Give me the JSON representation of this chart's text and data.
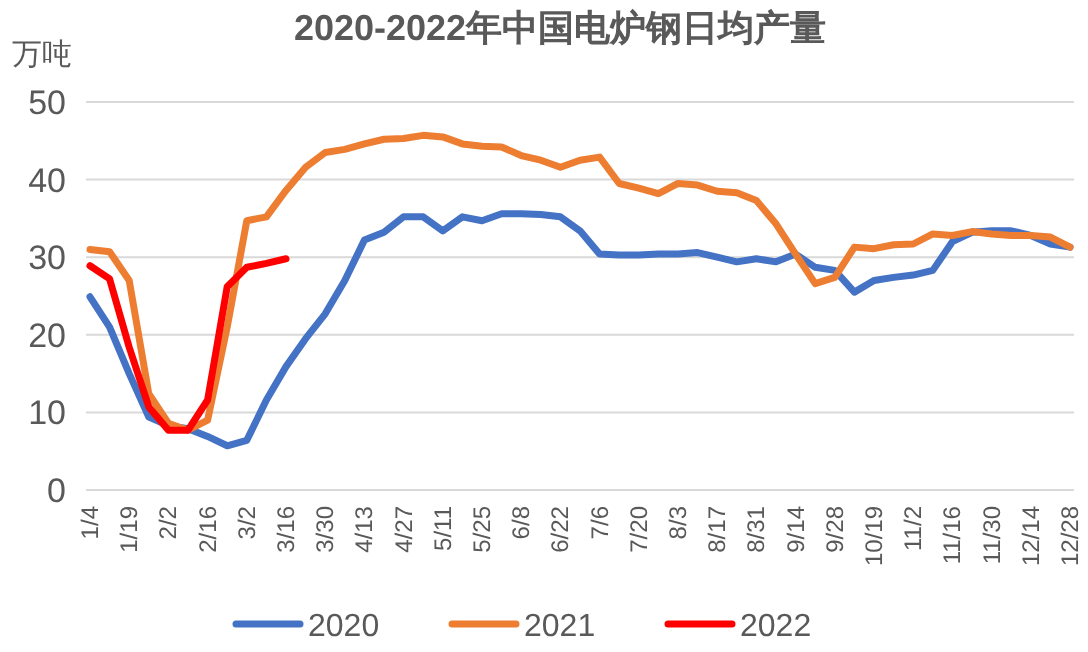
{
  "chart_data": {
    "type": "line",
    "title": "2020-2022年中国电炉钢日均产量",
    "ylabel": "万吨",
    "categories": [
      "1/4",
      null,
      "1/19",
      null,
      "2/2",
      null,
      "2/16",
      null,
      "3/2",
      null,
      "3/16",
      null,
      "3/30",
      null,
      "4/13",
      null,
      "4/27",
      null,
      "5/11",
      null,
      "5/25",
      null,
      "6/8",
      null,
      "6/22",
      null,
      "7/6",
      null,
      "7/20",
      null,
      "8/3",
      null,
      "8/17",
      null,
      "8/31",
      null,
      "9/14",
      null,
      "9/28",
      null,
      "10/19",
      null,
      "11/2",
      null,
      "11/16",
      null,
      "11/30",
      null,
      "12/14",
      null,
      "12/28"
    ],
    "series": [
      {
        "name": "2020",
        "color": "#4472c4",
        "values": [
          24.9,
          21,
          15,
          9.4,
          8.3,
          7.9,
          6.9,
          5.7,
          6.4,
          11.6,
          15.9,
          19.5,
          22.7,
          27,
          32.2,
          33.2,
          35.2,
          35.2,
          33.4,
          35.2,
          34.7,
          35.6,
          35.6,
          35.5,
          35.2,
          33.4,
          30.4,
          30.3,
          30.3,
          30.4,
          30.4,
          30.6,
          30,
          29.4,
          29.8,
          29.4,
          30.4,
          28.7,
          28.3,
          25.5,
          27,
          27.4,
          27.7,
          28.3,
          32,
          33.2,
          33.4,
          33.4,
          32.8,
          31.7,
          31.3
        ]
      },
      {
        "name": "2021",
        "color": "#ed7d31",
        "values": [
          31,
          30.7,
          27,
          12.4,
          8.6,
          7.7,
          9,
          21,
          34.7,
          35.2,
          38.6,
          41.6,
          43.5,
          43.9,
          44.6,
          45.2,
          45.3,
          45.7,
          45.5,
          44.6,
          44.3,
          44.2,
          43.1,
          42.5,
          41.6,
          42.5,
          42.9,
          39.5,
          38.9,
          38.2,
          39.5,
          39.3,
          38.5,
          38.3,
          37.3,
          34.3,
          30.4,
          26.6,
          27.4,
          31.3,
          31.1,
          31.6,
          31.7,
          33,
          32.8,
          33.3,
          33,
          32.8,
          32.8,
          32.6,
          31.3
        ]
      },
      {
        "name": "2022",
        "color": "#ff0000",
        "values": [
          28.9,
          27.2,
          18.4,
          10.7,
          7.7,
          7.7,
          11.6,
          26.2,
          28.7,
          29.2,
          29.8,
          null,
          null,
          null,
          null,
          null,
          null,
          null,
          null,
          null,
          null,
          null,
          null,
          null,
          null,
          null,
          null,
          null,
          null,
          null,
          null,
          null,
          null,
          null,
          null,
          null,
          null,
          null,
          null,
          null,
          null,
          null,
          null,
          null,
          null,
          null,
          null,
          null,
          null,
          null,
          null
        ]
      }
    ],
    "ylim": [
      0,
      50
    ],
    "yticks": [
      0,
      10,
      20,
      30,
      40,
      50
    ],
    "grid": "y",
    "legend": "bottom",
    "line_style": "solid",
    "marker": "none"
  }
}
